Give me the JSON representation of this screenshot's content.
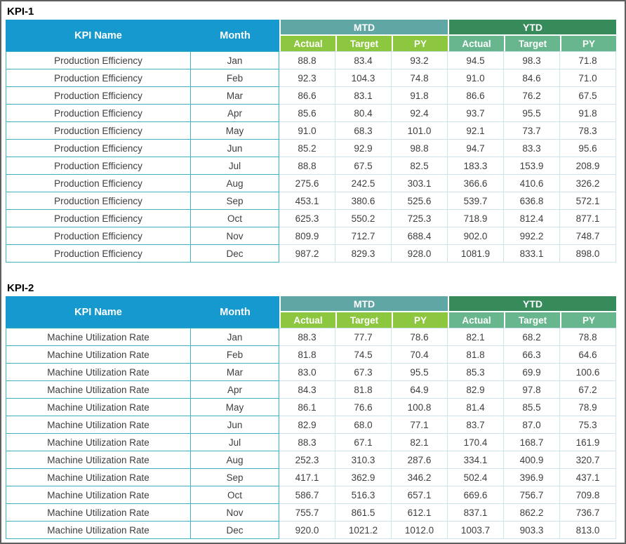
{
  "colors": {
    "header_blue": "#1699CF",
    "mtd_band_teal": "#60A6A5",
    "ytd_band_green": "#378B5B",
    "mtd_subheader_green": "#8DC63F",
    "ytd_subheader_green": "#68B68D",
    "grid_teal": "#3FB1BF",
    "grid_light_blue": "#CFE3EE",
    "data_text": "#3E3E3E",
    "header_text": "#FFFFFF"
  },
  "tables": [
    {
      "title": "KPI-1",
      "columns": {
        "kpi_name": "KPI Name",
        "month": "Month",
        "mtd": "MTD",
        "ytd": "YTD",
        "sub": [
          "Actual",
          "Target",
          "PY"
        ]
      },
      "kpi_name": "Production Efficiency",
      "rows": [
        {
          "month": "Jan",
          "mtd": [
            "88.8",
            "83.4",
            "93.2"
          ],
          "ytd": [
            "94.5",
            "98.3",
            "71.8"
          ]
        },
        {
          "month": "Feb",
          "mtd": [
            "92.3",
            "104.3",
            "74.8"
          ],
          "ytd": [
            "91.0",
            "84.6",
            "71.0"
          ]
        },
        {
          "month": "Mar",
          "mtd": [
            "86.6",
            "83.1",
            "91.8"
          ],
          "ytd": [
            "86.6",
            "76.2",
            "67.5"
          ]
        },
        {
          "month": "Apr",
          "mtd": [
            "85.6",
            "80.4",
            "92.4"
          ],
          "ytd": [
            "93.7",
            "95.5",
            "91.8"
          ]
        },
        {
          "month": "May",
          "mtd": [
            "91.0",
            "68.3",
            "101.0"
          ],
          "ytd": [
            "92.1",
            "73.7",
            "78.3"
          ]
        },
        {
          "month": "Jun",
          "mtd": [
            "85.2",
            "92.9",
            "98.8"
          ],
          "ytd": [
            "94.7",
            "83.3",
            "95.6"
          ]
        },
        {
          "month": "Jul",
          "mtd": [
            "88.8",
            "67.5",
            "82.5"
          ],
          "ytd": [
            "183.3",
            "153.9",
            "208.9"
          ]
        },
        {
          "month": "Aug",
          "mtd": [
            "275.6",
            "242.5",
            "303.1"
          ],
          "ytd": [
            "366.6",
            "410.6",
            "326.2"
          ]
        },
        {
          "month": "Sep",
          "mtd": [
            "453.1",
            "380.6",
            "525.6"
          ],
          "ytd": [
            "539.7",
            "636.8",
            "572.1"
          ]
        },
        {
          "month": "Oct",
          "mtd": [
            "625.3",
            "550.2",
            "725.3"
          ],
          "ytd": [
            "718.9",
            "812.4",
            "877.1"
          ]
        },
        {
          "month": "Nov",
          "mtd": [
            "809.9",
            "712.7",
            "688.4"
          ],
          "ytd": [
            "902.0",
            "992.2",
            "748.7"
          ]
        },
        {
          "month": "Dec",
          "mtd": [
            "987.2",
            "829.3",
            "928.0"
          ],
          "ytd": [
            "1081.9",
            "833.1",
            "898.0"
          ]
        }
      ]
    },
    {
      "title": "KPI-2",
      "columns": {
        "kpi_name": "KPI Name",
        "month": "Month",
        "mtd": "MTD",
        "ytd": "YTD",
        "sub": [
          "Actual",
          "Target",
          "PY"
        ]
      },
      "kpi_name": "Machine Utilization Rate",
      "rows": [
        {
          "month": "Jan",
          "mtd": [
            "88.3",
            "77.7",
            "78.6"
          ],
          "ytd": [
            "82.1",
            "68.2",
            "78.8"
          ]
        },
        {
          "month": "Feb",
          "mtd": [
            "81.8",
            "74.5",
            "70.4"
          ],
          "ytd": [
            "81.8",
            "66.3",
            "64.6"
          ]
        },
        {
          "month": "Mar",
          "mtd": [
            "83.0",
            "67.3",
            "95.5"
          ],
          "ytd": [
            "85.3",
            "69.9",
            "100.6"
          ]
        },
        {
          "month": "Apr",
          "mtd": [
            "84.3",
            "81.8",
            "64.9"
          ],
          "ytd": [
            "82.9",
            "97.8",
            "67.2"
          ]
        },
        {
          "month": "May",
          "mtd": [
            "86.1",
            "76.6",
            "100.8"
          ],
          "ytd": [
            "81.4",
            "85.5",
            "78.9"
          ]
        },
        {
          "month": "Jun",
          "mtd": [
            "82.9",
            "68.0",
            "77.1"
          ],
          "ytd": [
            "83.7",
            "87.0",
            "75.3"
          ]
        },
        {
          "month": "Jul",
          "mtd": [
            "88.3",
            "67.1",
            "82.1"
          ],
          "ytd": [
            "170.4",
            "168.7",
            "161.9"
          ]
        },
        {
          "month": "Aug",
          "mtd": [
            "252.3",
            "310.3",
            "287.6"
          ],
          "ytd": [
            "334.1",
            "400.9",
            "320.7"
          ]
        },
        {
          "month": "Sep",
          "mtd": [
            "417.1",
            "362.9",
            "346.2"
          ],
          "ytd": [
            "502.4",
            "396.9",
            "437.1"
          ]
        },
        {
          "month": "Oct",
          "mtd": [
            "586.7",
            "516.3",
            "657.1"
          ],
          "ytd": [
            "669.6",
            "756.7",
            "709.8"
          ]
        },
        {
          "month": "Nov",
          "mtd": [
            "755.7",
            "861.5",
            "612.1"
          ],
          "ytd": [
            "837.1",
            "862.2",
            "736.7"
          ]
        },
        {
          "month": "Dec",
          "mtd": [
            "920.0",
            "1021.2",
            "1012.0"
          ],
          "ytd": [
            "1003.7",
            "903.3",
            "813.0"
          ]
        }
      ]
    }
  ]
}
